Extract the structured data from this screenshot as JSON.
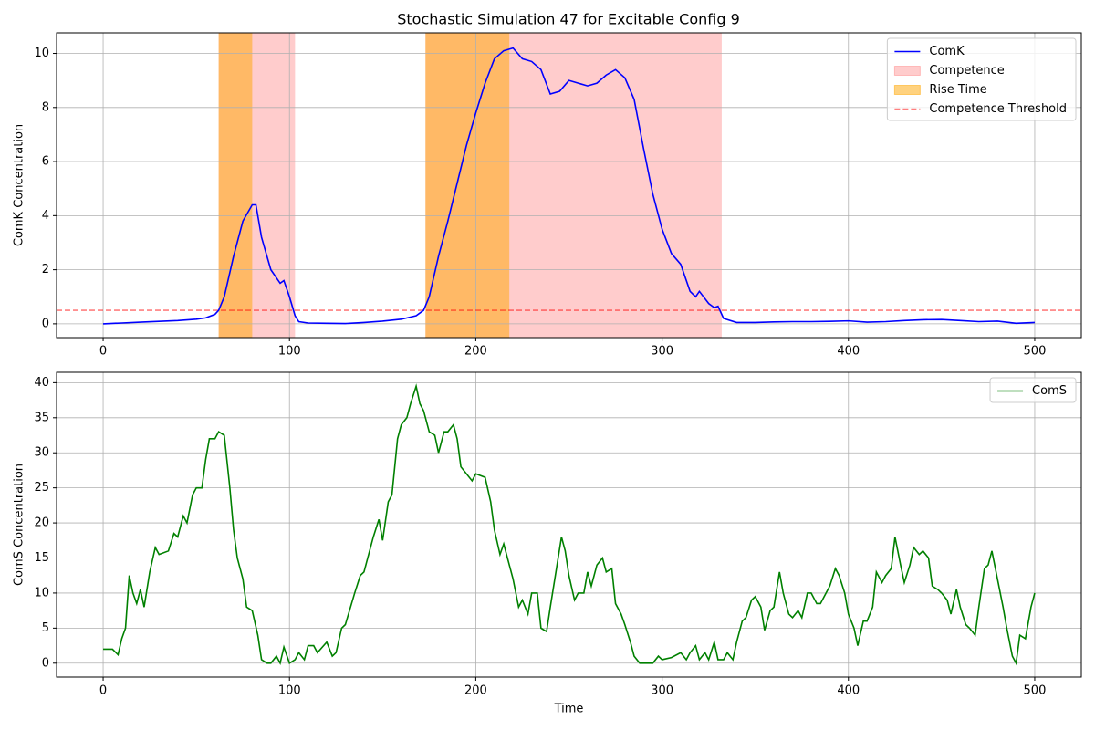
{
  "chart_data": [
    {
      "type": "line",
      "title": "Stochastic Simulation 47 for Excitable Config 9",
      "y_label": "ComK Concentration",
      "x": [
        0,
        10,
        20,
        30,
        40,
        50,
        55,
        60,
        62,
        65,
        70,
        75,
        80,
        82,
        85,
        90,
        95,
        97,
        100,
        103,
        105,
        110,
        120,
        130,
        140,
        150,
        160,
        168,
        172,
        175,
        180,
        185,
        190,
        195,
        200,
        205,
        210,
        215,
        220,
        225,
        230,
        235,
        240,
        245,
        250,
        255,
        260,
        265,
        270,
        275,
        280,
        285,
        290,
        295,
        300,
        305,
        310,
        315,
        318,
        320,
        325,
        328,
        330,
        333,
        340,
        350,
        360,
        370,
        380,
        390,
        400,
        410,
        420,
        430,
        440,
        450,
        460,
        470,
        480,
        490,
        500
      ],
      "series": [
        {
          "name": "ComK",
          "color": "#0000ff",
          "values": [
            0.0,
            0.03,
            0.06,
            0.09,
            0.12,
            0.17,
            0.22,
            0.35,
            0.5,
            1.0,
            2.5,
            3.8,
            4.4,
            4.4,
            3.2,
            2.0,
            1.5,
            1.6,
            1.0,
            0.3,
            0.08,
            0.03,
            0.02,
            0.01,
            0.05,
            0.1,
            0.17,
            0.3,
            0.5,
            1.0,
            2.5,
            3.8,
            5.2,
            6.6,
            7.8,
            8.9,
            9.8,
            10.1,
            10.2,
            9.8,
            9.7,
            9.4,
            8.5,
            8.6,
            9.0,
            8.9,
            8.8,
            8.9,
            9.2,
            9.4,
            9.1,
            8.3,
            6.5,
            4.8,
            3.5,
            2.6,
            2.2,
            1.2,
            1.0,
            1.2,
            0.75,
            0.6,
            0.65,
            0.2,
            0.05,
            0.05,
            0.07,
            0.08,
            0.08,
            0.09,
            0.11,
            0.06,
            0.08,
            0.12,
            0.15,
            0.16,
            0.12,
            0.08,
            0.1,
            0.02,
            0.05
          ]
        }
      ],
      "spans": [
        {
          "name": "Competence",
          "color": "#ff0000",
          "alpha": 0.2,
          "ranges": [
            [
              62,
              103
            ],
            [
              173,
              332
            ]
          ]
        },
        {
          "name": "Rise Time",
          "color": "#ffa500",
          "alpha": 0.5,
          "ranges": [
            [
              62,
              80
            ],
            [
              173,
              218
            ]
          ]
        }
      ],
      "hlines": [
        {
          "name": "Competence Threshold",
          "value": 0.5,
          "color": "#ff0000",
          "alpha": 0.5,
          "style": "dashed"
        }
      ],
      "xlim": [
        -25,
        525
      ],
      "xticks": [
        0,
        100,
        200,
        300,
        400,
        500
      ],
      "ylim": [
        -0.51,
        10.76
      ],
      "yticks": [
        0,
        2,
        4,
        6,
        8,
        10
      ],
      "grid": true,
      "legend": "upper right"
    },
    {
      "type": "line",
      "x_label": "Time",
      "y_label": "ComS Concentration",
      "x": [
        0,
        5,
        8,
        10,
        12,
        14,
        16,
        18,
        20,
        22,
        25,
        28,
        30,
        35,
        38,
        40,
        43,
        45,
        48,
        50,
        53,
        55,
        57,
        60,
        62,
        65,
        68,
        70,
        72,
        75,
        77,
        80,
        83,
        85,
        88,
        90,
        93,
        95,
        97,
        100,
        103,
        105,
        108,
        110,
        113,
        115,
        120,
        123,
        125,
        128,
        130,
        135,
        138,
        140,
        145,
        148,
        150,
        153,
        155,
        158,
        160,
        163,
        165,
        168,
        170,
        172,
        175,
        178,
        180,
        183,
        185,
        188,
        190,
        192,
        195,
        198,
        200,
        205,
        208,
        210,
        213,
        215,
        218,
        220,
        223,
        225,
        228,
        230,
        233,
        235,
        238,
        240,
        243,
        246,
        248,
        250,
        253,
        255,
        258,
        260,
        262,
        265,
        268,
        270,
        273,
        275,
        278,
        280,
        283,
        285,
        288,
        290,
        295,
        298,
        300,
        305,
        310,
        313,
        315,
        318,
        320,
        323,
        325,
        328,
        330,
        333,
        335,
        338,
        340,
        343,
        345,
        348,
        350,
        353,
        355,
        358,
        360,
        363,
        365,
        368,
        370,
        373,
        375,
        378,
        380,
        383,
        385,
        388,
        390,
        393,
        395,
        398,
        400,
        403,
        405,
        408,
        410,
        413,
        415,
        418,
        420,
        423,
        425,
        428,
        430,
        433,
        435,
        438,
        440,
        443,
        445,
        448,
        450,
        453,
        455,
        458,
        460,
        463,
        465,
        468,
        470,
        473,
        475,
        477,
        480,
        483,
        485,
        488,
        490,
        492,
        495,
        498,
        500
      ],
      "series": [
        {
          "name": "ComS",
          "color": "#008000",
          "values": [
            2,
            2.0,
            1.2,
            3.5,
            5,
            12.5,
            10,
            8.5,
            10.5,
            8,
            13,
            16.5,
            15.5,
            16,
            18.5,
            18,
            21,
            20,
            24,
            25,
            25,
            29,
            32,
            32,
            33,
            32.5,
            25,
            19,
            15,
            12,
            8,
            7.5,
            4,
            0.5,
            0,
            0,
            1,
            0,
            2.3,
            0,
            0.5,
            1.5,
            0.5,
            2.5,
            2.5,
            1.5,
            3,
            1,
            1.5,
            5,
            5.5,
            10,
            12.5,
            13,
            18,
            20.5,
            17.5,
            23,
            24,
            32,
            34,
            35,
            37,
            39.5,
            37,
            36,
            33,
            32.5,
            30,
            33,
            33,
            34,
            32,
            28,
            27,
            26,
            27,
            26.5,
            23,
            19,
            15.5,
            17,
            14,
            12,
            8,
            9,
            7,
            10,
            10,
            5,
            4.5,
            8,
            13,
            18,
            16,
            12.5,
            9,
            10,
            10,
            13,
            11,
            14,
            15,
            13,
            13.5,
            8.5,
            7,
            5.5,
            3,
            1,
            0,
            0,
            0,
            1,
            0.5,
            0.8,
            1.5,
            0.5,
            1.5,
            2.5,
            0.5,
            1.5,
            0.5,
            3,
            0.5,
            0.5,
            1.5,
            0.5,
            3,
            6,
            6.5,
            9,
            9.5,
            8,
            4.7,
            7.5,
            8,
            13,
            10,
            7,
            6.5,
            7.5,
            6.5,
            10,
            10,
            8.5,
            8.5,
            10,
            11,
            13.5,
            12.5,
            10,
            7,
            5,
            2.5,
            6,
            6,
            8,
            13,
            11.5,
            12.5,
            13.5,
            18,
            14,
            11.5,
            14,
            16.5,
            15.5,
            16,
            15,
            11,
            10.5,
            10,
            9,
            7,
            10.5,
            8,
            5.5,
            5,
            4,
            8,
            13.5,
            14,
            16,
            12,
            8,
            5,
            1,
            0,
            4,
            3.5,
            8,
            10
          ]
        }
      ],
      "xlim": [
        -25,
        525
      ],
      "xticks": [
        0,
        100,
        200,
        300,
        400,
        500
      ],
      "ylim": [
        -1.98,
        41.48
      ],
      "yticks": [
        0,
        5,
        10,
        15,
        20,
        25,
        30,
        35,
        40
      ],
      "grid": true,
      "legend": "upper right"
    }
  ]
}
